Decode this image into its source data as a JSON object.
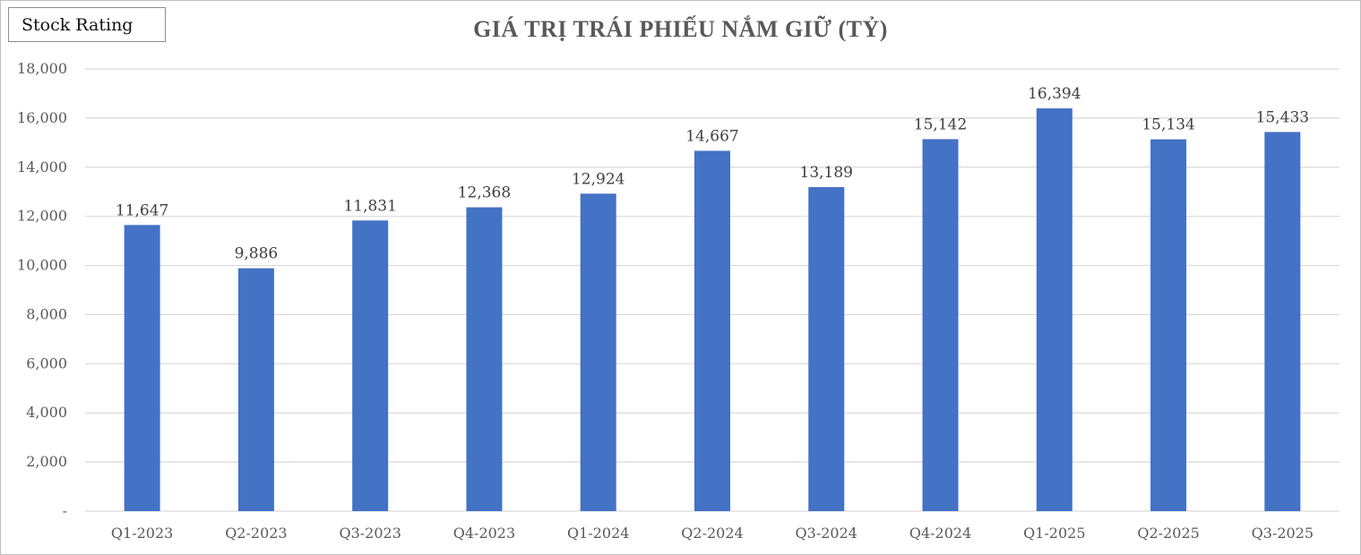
{
  "logo": {
    "text": "Stock Rating"
  },
  "chart_data": {
    "type": "bar",
    "title": "GIÁ TRỊ TRÁI PHIẾU NẮM GIỮ (TỶ)",
    "xlabel": "",
    "ylabel": "",
    "categories": [
      "Q1-2023",
      "Q2-2023",
      "Q3-2023",
      "Q4-2023",
      "Q1-2024",
      "Q2-2024",
      "Q3-2024",
      "Q4-2024",
      "Q1-2025",
      "Q2-2025",
      "Q3-2025"
    ],
    "values": [
      11647,
      9886,
      11831,
      12368,
      12924,
      14667,
      13189,
      15142,
      16394,
      15134,
      15433
    ],
    "data_labels": [
      "11,647",
      "9,886",
      "11,831",
      "12,368",
      "12,924",
      "14,667",
      "13,189",
      "15,142",
      "16,394",
      "15,134",
      "15,433"
    ],
    "ylim": [
      0,
      18000
    ],
    "yticks": [
      0,
      2000,
      4000,
      6000,
      8000,
      10000,
      12000,
      14000,
      16000,
      18000
    ],
    "ytick_labels": [
      "-",
      "2,000",
      "4,000",
      "6,000",
      "8,000",
      "10,000",
      "12,000",
      "14,000",
      "16,000",
      "18,000"
    ],
    "grid": true,
    "legend": "none",
    "bar_color": "#4472c4",
    "grid_color": "#d9d9d9"
  }
}
